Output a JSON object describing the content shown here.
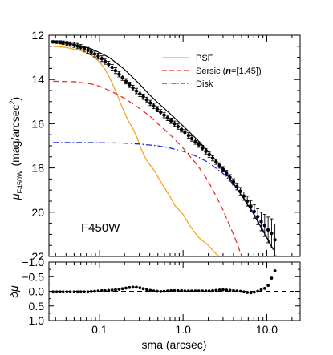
{
  "chart_data": [
    {
      "type": "line",
      "panel": "profile",
      "xscale": "log",
      "xlim": [
        0.025,
        25
      ],
      "ylim": [
        22,
        12
      ],
      "yticks": [
        12,
        14,
        16,
        18,
        20,
        22
      ],
      "ylabel_main": "μ",
      "ylabel_sub": "F450W",
      "ylabel_units": "(mag/arcsec",
      "ylabel_sup": "2",
      "ylabel_close": ")",
      "annotation": "F450W",
      "series": [
        {
          "name": "PSF",
          "color": "#f5a623",
          "style": "solid",
          "x": [
            0.028,
            0.04,
            0.06,
            0.08,
            0.1,
            0.12,
            0.14,
            0.16,
            0.18,
            0.2,
            0.22,
            0.25,
            0.28,
            0.32,
            0.36,
            0.4,
            0.45,
            0.5,
            0.6,
            0.7,
            0.8,
            1.0,
            1.2,
            1.5,
            2.0,
            2.5,
            2.7
          ],
          "y": [
            12.5,
            12.55,
            12.7,
            12.9,
            13.2,
            13.6,
            14.1,
            14.6,
            15.1,
            15.5,
            15.85,
            16.2,
            16.6,
            17.2,
            17.6,
            17.85,
            18.1,
            18.4,
            18.9,
            19.3,
            19.7,
            20.1,
            20.6,
            21.1,
            21.5,
            21.9,
            22.0
          ]
        },
        {
          "name": "Sersic (n=[1.45])",
          "label_prefix": "Sersic (",
          "label_n": "n",
          "label_suffix": "=[1.45])",
          "color": "#e8302a",
          "style": "dashed",
          "x": [
            0.028,
            0.05,
            0.08,
            0.1,
            0.15,
            0.2,
            0.3,
            0.4,
            0.5,
            0.7,
            1.0,
            1.5,
            2.0,
            2.5,
            3.0,
            3.5,
            4.0,
            4.5,
            5.0
          ],
          "y": [
            14.08,
            14.1,
            14.2,
            14.3,
            14.6,
            14.85,
            15.3,
            15.65,
            16.0,
            16.5,
            17.1,
            17.9,
            18.6,
            19.3,
            19.9,
            20.5,
            21.0,
            21.5,
            22.0
          ]
        },
        {
          "name": "Disk",
          "color": "#1f2bd6",
          "style": "dashdot",
          "x": [
            0.028,
            0.05,
            0.1,
            0.2,
            0.3,
            0.5,
            0.7,
            1.0,
            1.5,
            2.0,
            3.0,
            4.0,
            5.0,
            6.0,
            7.0,
            8.0,
            9.0,
            10.0,
            11.0,
            12.0
          ],
          "y": [
            16.85,
            16.85,
            16.86,
            16.88,
            16.92,
            17.0,
            17.1,
            17.25,
            17.5,
            17.75,
            18.25,
            18.75,
            19.2,
            19.65,
            20.05,
            20.45,
            20.8,
            21.1,
            21.4,
            21.7
          ]
        }
      ],
      "total_model": {
        "color": "#000000",
        "x": [
          0.028,
          0.035,
          0.045,
          0.06,
          0.08,
          0.1,
          0.13,
          0.16,
          0.2,
          0.25,
          0.3,
          0.4,
          0.5,
          0.7,
          1.0,
          1.5,
          2.0,
          3.0,
          4.0,
          5.0,
          6.0,
          7.0,
          8.0,
          9.0,
          10.0,
          11.0,
          12.0
        ],
        "y": [
          12.3,
          12.32,
          12.38,
          12.48,
          12.62,
          12.78,
          13.0,
          13.25,
          13.55,
          13.9,
          14.2,
          14.7,
          15.05,
          15.55,
          16.1,
          16.75,
          17.25,
          18.05,
          18.7,
          19.25,
          19.7,
          20.1,
          20.5,
          20.85,
          21.15,
          21.45,
          21.7
        ]
      },
      "data_points": {
        "x": [
          0.028,
          0.031,
          0.034,
          0.037,
          0.041,
          0.045,
          0.05,
          0.055,
          0.06,
          0.066,
          0.073,
          0.08,
          0.088,
          0.097,
          0.107,
          0.117,
          0.129,
          0.142,
          0.156,
          0.172,
          0.189,
          0.208,
          0.229,
          0.252,
          0.277,
          0.305,
          0.335,
          0.369,
          0.406,
          0.446,
          0.491,
          0.54,
          0.594,
          0.653,
          0.719,
          0.791,
          0.87,
          0.957,
          1.05,
          1.16,
          1.27,
          1.4,
          1.54,
          1.7,
          1.87,
          2.05,
          2.26,
          2.48,
          2.73,
          3.0,
          3.3,
          3.63,
          4.0,
          4.4,
          4.84,
          5.32,
          5.85,
          6.44,
          7.08,
          7.79,
          8.57,
          9.43,
          10.37,
          11.4,
          12.5
        ],
        "y": [
          12.3,
          12.31,
          12.32,
          12.34,
          12.37,
          12.4,
          12.44,
          12.49,
          12.54,
          12.61,
          12.68,
          12.76,
          12.85,
          12.95,
          13.06,
          13.18,
          13.31,
          13.45,
          13.6,
          13.76,
          13.92,
          14.08,
          14.24,
          14.38,
          14.52,
          14.65,
          14.78,
          14.92,
          15.06,
          15.2,
          15.34,
          15.48,
          15.61,
          15.74,
          15.87,
          16.0,
          16.13,
          16.26,
          16.39,
          16.53,
          16.67,
          16.81,
          16.95,
          17.1,
          17.25,
          17.4,
          17.56,
          17.72,
          17.89,
          18.06,
          18.24,
          18.43,
          18.63,
          18.84,
          19.05,
          19.27,
          19.5,
          19.73,
          19.97,
          20.2,
          20.42,
          20.6,
          20.8,
          20.95,
          21.25
        ],
        "err": [
          0.05,
          0.06,
          0.07,
          0.08,
          0.09,
          0.1,
          0.11,
          0.12,
          0.12,
          0.12,
          0.13,
          0.13,
          0.13,
          0.13,
          0.13,
          0.13,
          0.13,
          0.13,
          0.13,
          0.12,
          0.12,
          0.12,
          0.12,
          0.12,
          0.12,
          0.12,
          0.12,
          0.12,
          0.12,
          0.12,
          0.12,
          0.12,
          0.12,
          0.12,
          0.12,
          0.12,
          0.12,
          0.12,
          0.12,
          0.12,
          0.12,
          0.12,
          0.12,
          0.12,
          0.12,
          0.12,
          0.12,
          0.12,
          0.12,
          0.12,
          0.13,
          0.13,
          0.14,
          0.15,
          0.17,
          0.19,
          0.22,
          0.26,
          0.3,
          0.36,
          0.42,
          0.5,
          0.58,
          0.65,
          0.72
        ]
      }
    },
    {
      "type": "scatter",
      "panel": "residuals",
      "xscale": "log",
      "xlim": [
        0.025,
        25
      ],
      "ylim": [
        1.0,
        -1.0
      ],
      "yticks": [
        -1.0,
        -0.5,
        0.0,
        0.5,
        1.0
      ],
      "ytick_labels": [
        "−1.0",
        "−0.5",
        "0.0",
        "0.5",
        "1.0"
      ],
      "xticks": [
        0.1,
        1.0,
        10.0
      ],
      "xtick_labels": [
        "0.1",
        "1.0",
        "10.0"
      ],
      "xlabel": "sma (arcsec)",
      "ylabel": "δμ",
      "zero_line": 0,
      "x": [
        0.028,
        0.031,
        0.034,
        0.037,
        0.041,
        0.045,
        0.05,
        0.055,
        0.06,
        0.066,
        0.073,
        0.08,
        0.088,
        0.097,
        0.107,
        0.117,
        0.129,
        0.142,
        0.156,
        0.172,
        0.189,
        0.208,
        0.229,
        0.252,
        0.277,
        0.305,
        0.335,
        0.369,
        0.406,
        0.446,
        0.491,
        0.54,
        0.594,
        0.653,
        0.719,
        0.791,
        0.87,
        0.957,
        1.05,
        1.16,
        1.27,
        1.4,
        1.54,
        1.7,
        1.87,
        2.05,
        2.26,
        2.48,
        2.73,
        3.0,
        3.3,
        3.63,
        4.0,
        4.4,
        4.84,
        5.32,
        5.85,
        6.44,
        7.08,
        7.79,
        8.57,
        9.43,
        10.37,
        11.4,
        12.5
      ],
      "y": [
        0.02,
        0.02,
        0.02,
        0.02,
        0.02,
        0.02,
        0.02,
        0.02,
        0.02,
        0.02,
        0.02,
        0.01,
        0.0,
        -0.01,
        -0.02,
        -0.02,
        -0.03,
        -0.04,
        -0.05,
        -0.07,
        -0.09,
        -0.11,
        -0.13,
        -0.14,
        -0.14,
        -0.12,
        -0.09,
        -0.06,
        -0.03,
        -0.01,
        0.0,
        0.01,
        0.0,
        -0.01,
        -0.02,
        -0.02,
        -0.02,
        -0.02,
        -0.01,
        -0.01,
        -0.01,
        -0.01,
        -0.01,
        -0.01,
        -0.01,
        -0.01,
        -0.02,
        -0.03,
        -0.04,
        -0.05,
        -0.04,
        -0.03,
        -0.02,
        -0.01,
        0.0,
        0.02,
        0.04,
        0.05,
        0.03,
        0.0,
        -0.05,
        -0.1,
        -0.2,
        -0.45,
        -0.7
      ]
    }
  ],
  "legend": {
    "placement": "top-right"
  }
}
